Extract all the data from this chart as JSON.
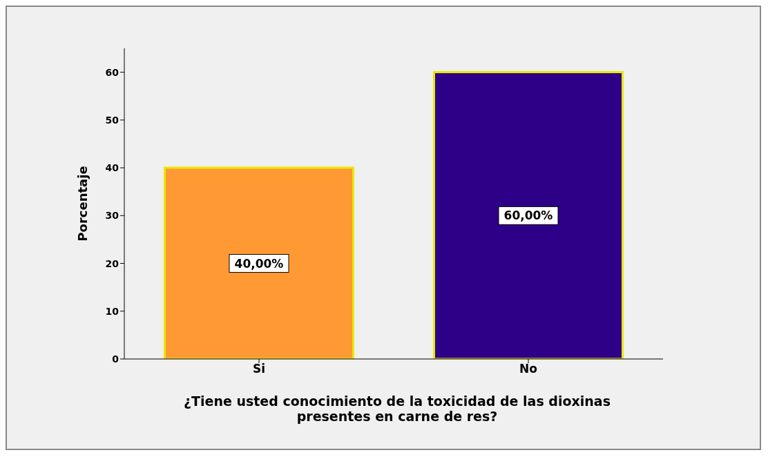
{
  "chart_data": {
    "type": "bar",
    "categories": [
      "Si",
      "No"
    ],
    "values": [
      40,
      60
    ],
    "colors": [
      "#ff9933",
      "#2e0088"
    ],
    "value_labels": [
      "40,00%",
      "60,00%"
    ],
    "ylabel": "Porcentaje",
    "xlabel": "¿Tiene usted conocimiento de la toxicidad de las dioxinas presentes en carne de res?",
    "ylim": [
      0,
      65
    ],
    "yticks": [
      0,
      10,
      20,
      30,
      40,
      50,
      60
    ],
    "grid": false,
    "legend": false
  }
}
